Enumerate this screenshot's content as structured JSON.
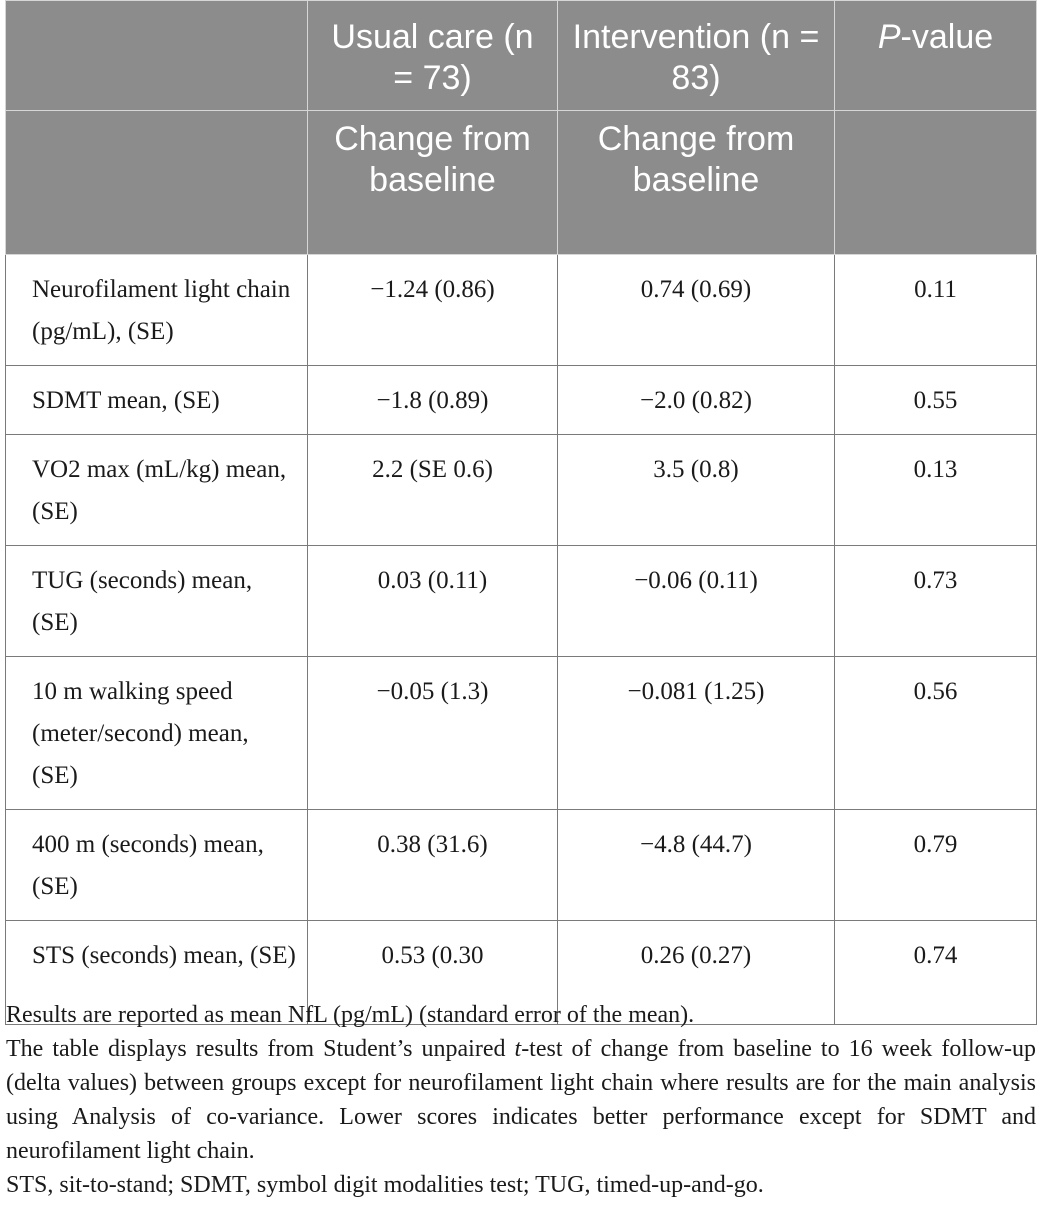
{
  "header": {
    "row1": {
      "col1": "",
      "col2": "Usual care (n = 73)",
      "col3": "Intervention (n = 83)",
      "col4_italic": "P",
      "col4_rest": "-value"
    },
    "row2": {
      "col1": "",
      "col2": "Change from baseline",
      "col3": "Change from baseline",
      "col4": ""
    }
  },
  "rows": [
    {
      "measure": "Neurofilament light chain (pg/mL), (SE)",
      "usual_care": "−1.24 (0.86)",
      "intervention": "0.74 (0.69)",
      "p_value": "0.11"
    },
    {
      "measure": "SDMT mean, (SE)",
      "usual_care": "−1.8 (0.89)",
      "intervention": "−2.0 (0.82)",
      "p_value": "0.55"
    },
    {
      "measure": "VO2 max (mL/kg) mean, (SE)",
      "usual_care": "2.2 (SE 0.6)",
      "intervention": "3.5 (0.8)",
      "p_value": "0.13"
    },
    {
      "measure": "TUG (seconds) mean, (SE)",
      "usual_care": "0.03 (0.11)",
      "intervention": "−0.06 (0.11)",
      "p_value": "0.73"
    },
    {
      "measure": "10 m walking speed (meter/second) mean, (SE)",
      "usual_care": "−0.05 (1.3)",
      "intervention": "−0.081 (1.25)",
      "p_value": "0.56"
    },
    {
      "measure": "400 m (seconds) mean, (SE)",
      "usual_care": "0.38 (31.6)",
      "intervention": "−4.8 (44.7)",
      "p_value": "0.79"
    },
    {
      "measure": "STS (seconds) mean, (SE)",
      "usual_care": "0.53 (0.30",
      "intervention": "0.26 (0.27)",
      "p_value": "0.74"
    }
  ],
  "footnotes": {
    "line1": "Results are reported as mean NfL (pg/mL) (standard error of the mean).",
    "line2_before": "The table displays results from Student’s unpaired ",
    "line2_italic": "t",
    "line2_after": "-test of change from baseline to 16 week follow-up (delta values) between groups except for neurofilament light chain where results are for the main analysis using Analysis of co-variance. Lower scores indicates better performance except for SDMT and neurofilament light chain.",
    "line3": "STS, sit-to-stand; SDMT, symbol digit modalities test; TUG, timed-up-and-go."
  }
}
